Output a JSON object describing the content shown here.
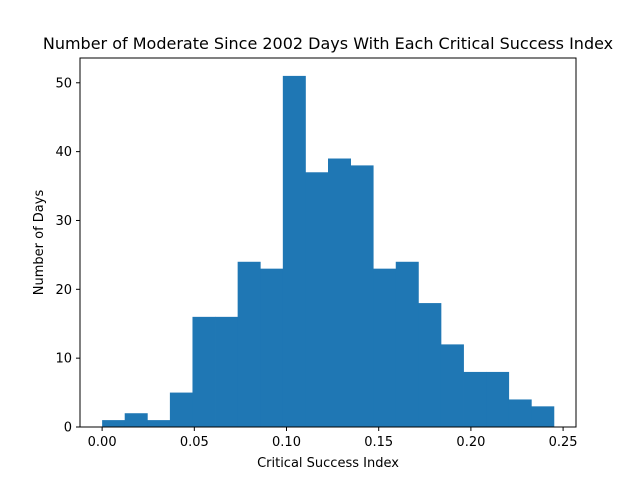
{
  "chart_data": {
    "type": "bar",
    "title": "Number of Moderate Since 2002 Days With Each Critical Success Index",
    "xlabel": "Critical Success Index",
    "ylabel": "Number of Days",
    "xlim": [
      -0.012,
      0.257
    ],
    "ylim": [
      0,
      53.6
    ],
    "xticks": [
      "0.00",
      "0.05",
      "0.10",
      "0.15",
      "0.20",
      "0.25"
    ],
    "yticks": [
      "0",
      "10",
      "20",
      "30",
      "40",
      "50"
    ],
    "grid": false,
    "bar_color": "#1f77b4",
    "bin_edges": [
      0.0,
      0.01225,
      0.0245,
      0.03675,
      0.049,
      0.06125,
      0.0735,
      0.08575,
      0.098,
      0.11025,
      0.1225,
      0.13475,
      0.147,
      0.15925,
      0.1715,
      0.18375,
      0.196,
      0.20825,
      0.2205,
      0.23275,
      0.245
    ],
    "values": [
      1,
      2,
      1,
      5,
      16,
      16,
      24,
      23,
      51,
      37,
      39,
      38,
      23,
      24,
      18,
      12,
      8,
      8,
      4,
      3
    ]
  }
}
